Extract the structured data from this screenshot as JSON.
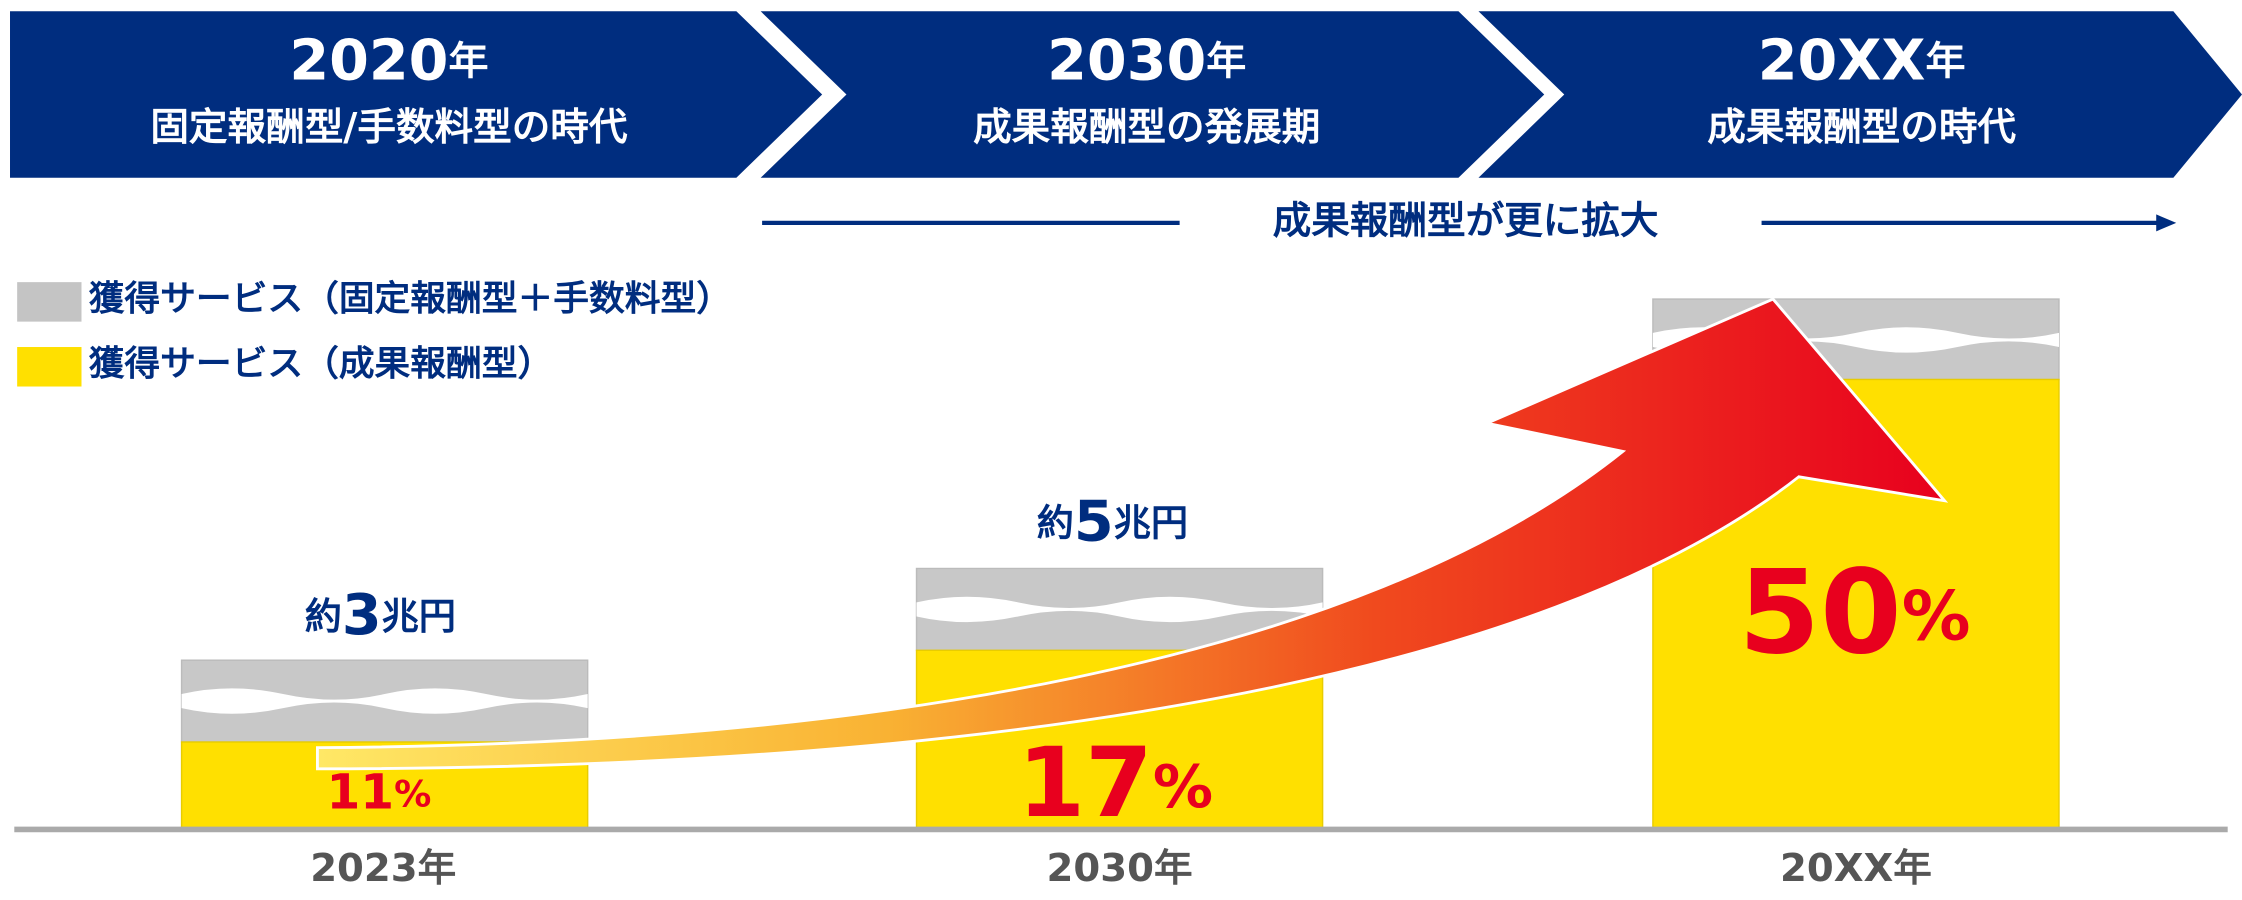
{
  "header": {
    "stages": [
      {
        "year": {
          "number": "2020",
          "unit": "年"
        },
        "label": "固定報酬型/手数料型の時代"
      },
      {
        "year": {
          "number": "2030",
          "unit": "年"
        },
        "label": "成果報酬型の発展期"
      },
      {
        "year": {
          "number": "20XX",
          "unit": "年"
        },
        "label": "成果報酬型の時代"
      }
    ]
  },
  "trend": "成果報酬型が更に拡大",
  "legend": [
    "獲得サービス（固定報酬型＋手数料型）",
    "獲得サービス（成果報酬型）"
  ],
  "bars": [
    {
      "total": {
        "prefix": "約",
        "number": "3",
        "suffix": "兆円"
      },
      "share": {
        "number": "11",
        "unit": "%"
      },
      "label": "2023年"
    },
    {
      "total": {
        "prefix": "約",
        "number": "5",
        "suffix": "兆円"
      },
      "share": {
        "number": "17",
        "unit": "%"
      },
      "label": "2030年"
    },
    {
      "share": {
        "number": "50",
        "unit": "%"
      },
      "label": "20XX年"
    }
  ]
}
